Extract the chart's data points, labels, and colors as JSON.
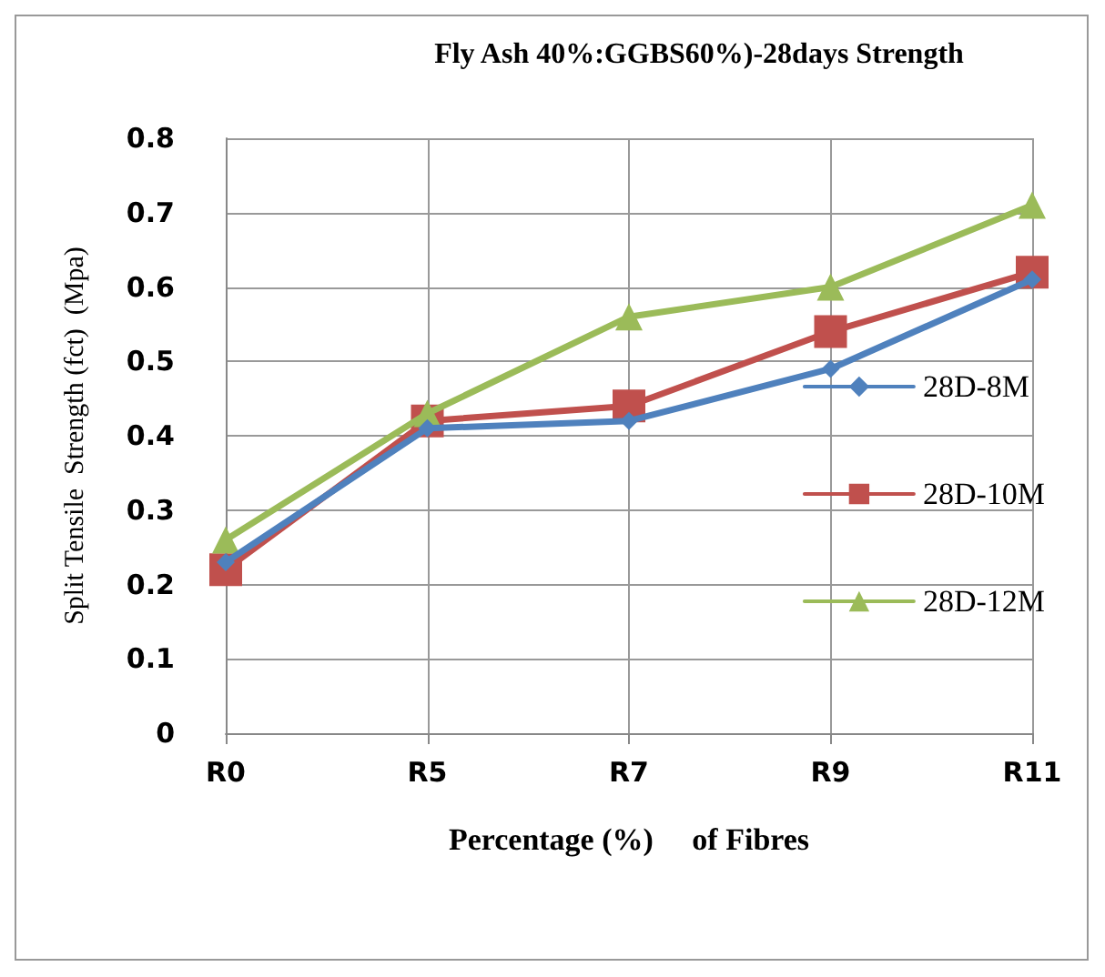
{
  "chart_data": {
    "type": "line",
    "title": "Fly Ash 40%:GGBS60%)-28days Strength",
    "xlabel": "Percentage (%)     of Fibres",
    "ylabel": "Split Tensile  Strength (fct)  (Mpa)",
    "categories": [
      "R0",
      "R5",
      "R7",
      "R9",
      "R11"
    ],
    "series": [
      {
        "name": "28D-8M",
        "color": "#4f81bd",
        "marker": "diamond",
        "values": [
          0.23,
          0.41,
          0.42,
          0.49,
          0.61
        ]
      },
      {
        "name": "28D-10M",
        "color": "#c0504d",
        "marker": "square",
        "values": [
          0.22,
          0.42,
          0.44,
          0.54,
          0.62
        ]
      },
      {
        "name": "28D-12M",
        "color": "#9bbb59",
        "marker": "triangle",
        "values": [
          0.26,
          0.43,
          0.56,
          0.6,
          0.71
        ]
      }
    ],
    "ylim": [
      0,
      0.8
    ],
    "yticks": [
      0,
      0.1,
      0.2,
      0.3,
      0.4,
      0.5,
      0.6,
      0.7,
      0.8
    ],
    "grid": true,
    "legend": "right",
    "line_style": "solid"
  }
}
